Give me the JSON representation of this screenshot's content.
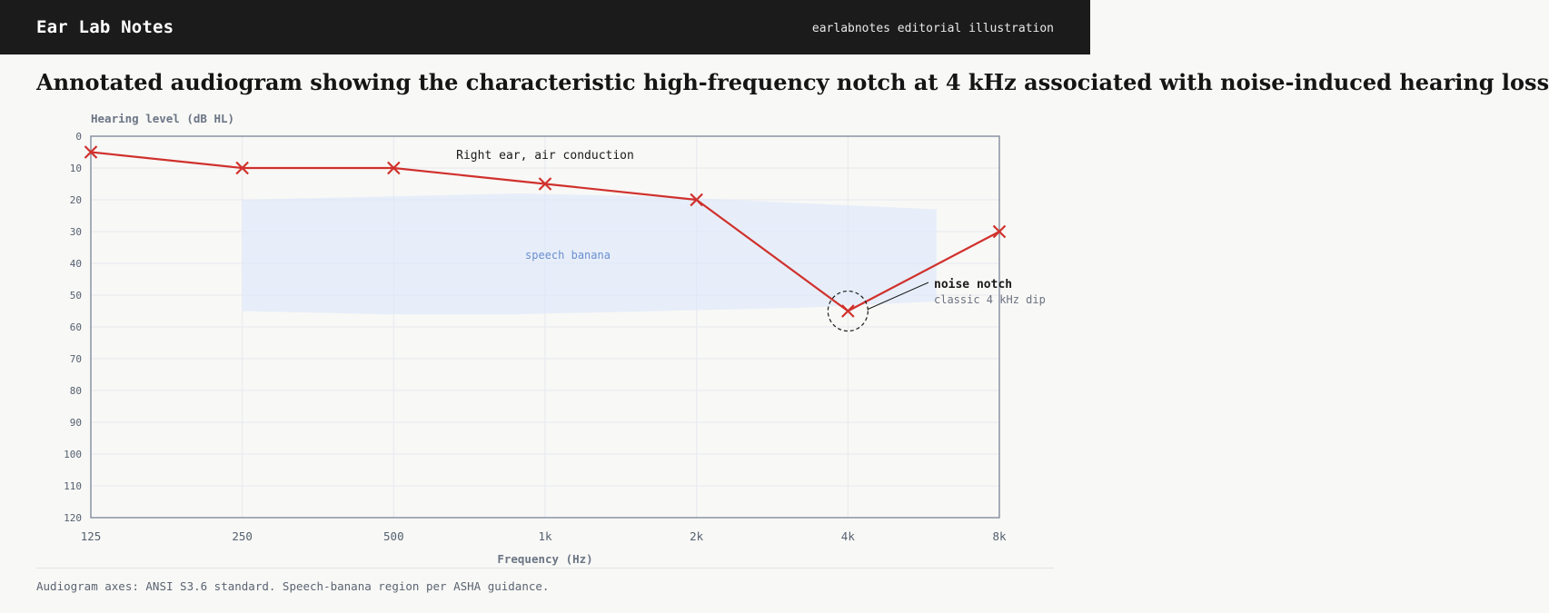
{
  "header": {
    "brand": "Ear Lab Notes",
    "tagline": "earlabnotes editorial illustration"
  },
  "headline": "Annotated audiogram showing the characteristic high-frequency notch at 4 kHz associated with noise-induced hearing loss",
  "source_note": "Audiogram axes: ANSI S3.6 standard. Speech-banana region per ASHA guidance.",
  "chart_data": {
    "type": "line",
    "title": "",
    "ylabel": "Hearing level (dB HL)",
    "xlabel": "Frequency (Hz)",
    "x_tick_labels": [
      "125",
      "250",
      "500",
      "1k",
      "2k",
      "4k",
      "8k"
    ],
    "x": [
      125,
      250,
      500,
      1000,
      2000,
      4000,
      8000
    ],
    "x_scale": "log2",
    "ylim": [
      0,
      120
    ],
    "y_inverted": true,
    "y_ticks": [
      0,
      10,
      20,
      30,
      40,
      50,
      60,
      70,
      80,
      90,
      100,
      110,
      120
    ],
    "grid": true,
    "series": [
      {
        "name": "Right ear, air conduction",
        "marker": "x",
        "color": "#d0312d",
        "values": [
          5,
          10,
          10,
          15,
          20,
          55,
          30
        ]
      }
    ],
    "speech_banana": {
      "label": "speech banana",
      "color": "#dce7fb",
      "label_color": "#6b8fcf",
      "x_range": [
        250,
        6000
      ],
      "upper_db": [
        20,
        19,
        18,
        19,
        21,
        23
      ],
      "lower_db": [
        55,
        56,
        56,
        55,
        54,
        52
      ]
    },
    "annotation": {
      "x": 4000,
      "y": 55,
      "title": "noise notch",
      "subtitle": "classic 4 kHz dip"
    }
  }
}
